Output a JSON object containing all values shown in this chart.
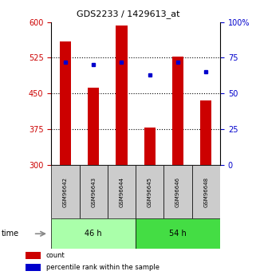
{
  "title": "GDS2233 / 1429613_at",
  "samples": [
    "GSM96642",
    "GSM96643",
    "GSM96644",
    "GSM96645",
    "GSM96646",
    "GSM96648"
  ],
  "counts": [
    560,
    463,
    592,
    378,
    528,
    435
  ],
  "percentiles": [
    72,
    70,
    72,
    63,
    72,
    65
  ],
  "groups": [
    {
      "label": "46 h",
      "color": "#aaffaa"
    },
    {
      "label": "54 h",
      "color": "#44dd44"
    }
  ],
  "bar_color": "#cc0000",
  "dot_color": "#0000cc",
  "ylim_left": [
    300,
    600
  ],
  "ylim_right": [
    0,
    100
  ],
  "yticks_left": [
    300,
    375,
    450,
    525,
    600
  ],
  "yticks_right": [
    0,
    25,
    50,
    75,
    100
  ],
  "grid_ticks": [
    375,
    450,
    525
  ],
  "left_axis_color": "#cc0000",
  "right_axis_color": "#0000cc",
  "bg_color": "#ffffff",
  "plot_bg": "#ffffff",
  "xlabel_area_color": "#cccccc",
  "time_label": "time",
  "figsize": [
    3.21,
    3.45
  ],
  "dpi": 100
}
